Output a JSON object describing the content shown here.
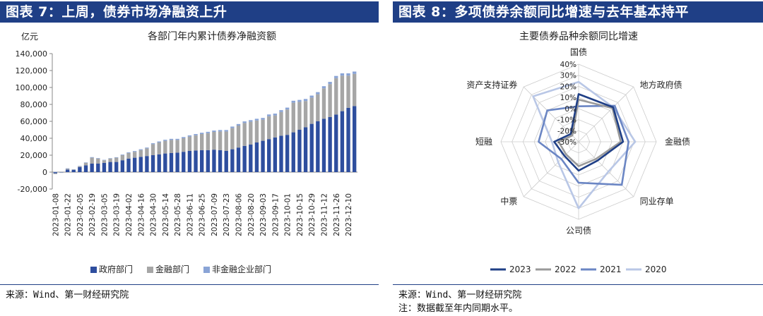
{
  "left": {
    "banner": "图表 7：上周，债券市场净融资上升",
    "source": "来源：Wind、第一财经研究院"
  },
  "right": {
    "banner": "图表 8：多项债券余额同比增速与去年基本持平",
    "source": "来源：Wind、第一财经研究院",
    "note": "注：数据截至年内同期水平。"
  },
  "chart_data": [
    {
      "type": "bar",
      "stacked": true,
      "title": "各部门年内累计债券净融资额",
      "ylabel": "亿元",
      "ylim": [
        -20000,
        140000
      ],
      "yticks": [
        -20000,
        0,
        20000,
        40000,
        60000,
        80000,
        100000,
        120000,
        140000
      ],
      "ytick_labels": [
        "-20,000",
        "0",
        "20,000",
        "40,000",
        "60,000",
        "80,000",
        "100,000",
        "120,000",
        "140,000"
      ],
      "categories": [
        "2023-01-08",
        "2023-01-15",
        "2023-01-22",
        "2023-01-29",
        "2023-02-05",
        "2023-02-12",
        "2023-02-19",
        "2023-02-26",
        "2023-03-05",
        "2023-03-12",
        "2023-03-19",
        "2023-03-26",
        "2023-04-02",
        "2023-04-09",
        "2023-04-16",
        "2023-04-23",
        "2023-04-30",
        "2023-05-07",
        "2023-05-14",
        "2023-05-21",
        "2023-05-28",
        "2023-06-04",
        "2023-06-11",
        "2023-06-18",
        "2023-06-25",
        "2023-07-02",
        "2023-07-09",
        "2023-07-16",
        "2023-07-23",
        "2023-07-30",
        "2023-08-06",
        "2023-08-13",
        "2023-08-20",
        "2023-08-27",
        "2023-09-03",
        "2023-09-10",
        "2023-09-17",
        "2023-09-24",
        "2023-10-01",
        "2023-10-08",
        "2023-10-15",
        "2023-10-22",
        "2023-10-29",
        "2023-11-05",
        "2023-11-12",
        "2023-11-19",
        "2023-11-26",
        "2023-12-03",
        "2023-12-10",
        "2023-12-17"
      ],
      "tick_labels": [
        "2023-01-08",
        "2023-01-22",
        "2023-02-05",
        "2023-02-19",
        "2023-03-05",
        "2023-03-19",
        "2023-04-02",
        "2023-04-16",
        "2023-04-30",
        "2023-05-14",
        "2023-05-28",
        "2023-06-11",
        "2023-06-25",
        "2023-07-09",
        "2023-07-23",
        "2023-08-06",
        "2023-08-20",
        "2023-09-03",
        "2023-09-17",
        "2023-10-01",
        "2023-10-15",
        "2023-10-29",
        "2023-11-12",
        "2023-11-26",
        "2023-12-10"
      ],
      "series": [
        {
          "name": "政府部门",
          "color": "#2e4e9e",
          "values": [
            -1500,
            -500,
            3000,
            2500,
            6000,
            8000,
            10000,
            10000,
            11000,
            12000,
            12000,
            14000,
            16000,
            17000,
            18000,
            19000,
            20000,
            21000,
            22000,
            22500,
            23000,
            24000,
            25000,
            25500,
            26000,
            26000,
            26500,
            26000,
            25000,
            27000,
            29000,
            31000,
            32500,
            35000,
            37000,
            39000,
            41000,
            43000,
            44000,
            47000,
            50000,
            53000,
            57000,
            60000,
            63000,
            65000,
            68000,
            72000,
            76000,
            78000
          ]
        },
        {
          "name": "金融部门",
          "color": "#a6a6a6",
          "values": [
            -800,
            -200,
            1000,
            500,
            1000,
            3000,
            7000,
            6000,
            3000,
            4000,
            5000,
            6000,
            6500,
            7000,
            8000,
            9000,
            13000,
            14000,
            15000,
            15500,
            15000,
            16000,
            17000,
            18000,
            19000,
            20000,
            21000,
            22000,
            23000,
            25000,
            26000,
            27000,
            27000,
            26000,
            25000,
            27000,
            26000,
            28000,
            30000,
            35000,
            33000,
            31000,
            31000,
            32000,
            36000,
            39000,
            43000,
            42000,
            38000,
            38000
          ]
        },
        {
          "name": "非金融企业部门",
          "color": "#8aa4d6",
          "values": [
            200,
            100,
            500,
            300,
            300,
            500,
            700,
            600,
            500,
            500,
            600,
            700,
            800,
            900,
            1000,
            1000,
            1100,
            1200,
            1200,
            1300,
            1300,
            1400,
            1400,
            1500,
            1500,
            1600,
            1600,
            1700,
            1700,
            1800,
            1800,
            1900,
            1900,
            2000,
            2000,
            2100,
            2100,
            2200,
            2200,
            2300,
            2300,
            2400,
            2400,
            2500,
            2500,
            2600,
            2600,
            2700,
            2700,
            2800
          ]
        }
      ],
      "legend": "bottom"
    },
    {
      "type": "radar",
      "title": "主要债券品种余额同比增速",
      "axes": [
        "国债",
        "地方政府债",
        "金融债",
        "同业存单",
        "公司债",
        "中票",
        "短融",
        "资产支持证券"
      ],
      "rlim": [
        -30,
        40
      ],
      "rticks": [
        -30,
        -20,
        -10,
        0,
        10,
        20,
        30,
        40
      ],
      "rtick_labels": [
        "-30%",
        "-20%",
        "-10%",
        "0%",
        "10%",
        "20%",
        "30%",
        "40%"
      ],
      "series": [
        {
          "name": "2023",
          "color": "#1f3f86",
          "values": [
            13,
            14,
            10,
            -6,
            -4,
            -12,
            -8,
            -20
          ]
        },
        {
          "name": "2022",
          "color": "#9a9a9a",
          "values": [
            8,
            13,
            8,
            -8,
            -8,
            -14,
            -12,
            -22
          ]
        },
        {
          "name": "2021",
          "color": "#6b86c4",
          "values": [
            2,
            16,
            15,
            25,
            7,
            -8,
            6,
            10
          ]
        },
        {
          "name": "2020",
          "color": "#b9c7e6",
          "values": [
            24,
            14,
            21,
            8,
            30,
            -4,
            -6,
            28
          ]
        }
      ],
      "legend": "bottom"
    }
  ]
}
